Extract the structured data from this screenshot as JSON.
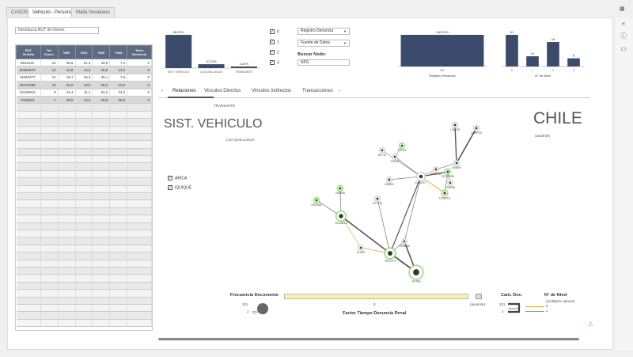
{
  "tabs": [
    {
      "label": "CASOS"
    },
    {
      "label": "Vehiculo - Persona"
    },
    {
      "label": "Malla Societaria"
    }
  ],
  "search": {
    "placeholder": "Introduzca RUT de Interés"
  },
  "table": {
    "headers": [
      "RUT\nSemilla",
      "Tot.\nConex.",
      "%N0",
      "%N1",
      "%N2",
      "%N3",
      "Tiene\nDenuncia"
    ],
    "rows": [
      [
        "9511212",
        "14",
        "28,5",
        "21,4",
        "42,5",
        "7,1",
        "0"
      ],
      [
        "20380470",
        "14",
        "42,5",
        "14,2",
        "28,5",
        "14,2",
        "0"
      ],
      [
        "11932277",
        "12",
        "16,7",
        "16,3",
        "46,1",
        "7,6",
        "0"
      ],
      [
        "25713338",
        "10",
        "40,0",
        "10,0",
        "40,0",
        "10,0",
        "0"
      ],
      [
        "10128912",
        "9",
        "44,4",
        "11,1",
        "22,2",
        "22,2",
        "0"
      ],
      [
        "7035534",
        "7",
        "28,5",
        "14,2",
        "28,5",
        "28,8",
        "0"
      ]
    ]
  },
  "chart_left": {
    "type": "bar",
    "categories": [
      "SIST. VEHICULO",
      "LOA QUILLAGUA",
      "TRANSANTE"
    ],
    "labels": [
      "88,23%",
      "10,23%",
      "4,20%"
    ],
    "values": [
      88.23,
      10.23,
      4.2
    ]
  },
  "levels_filter": [
    {
      "label": "0",
      "checked": true
    },
    {
      "label": "1",
      "checked": true
    },
    {
      "label": "2",
      "checked": true
    },
    {
      "label": "3",
      "checked": true
    }
  ],
  "dropdowns": {
    "registro": "Registro Denuncia",
    "fuente": "Fuente de Datos"
  },
  "buscar": {
    "label": "Buscar Nodo:",
    "value": "NFG"
  },
  "chart_registro": {
    "type": "bar",
    "categories": [
      "NO"
    ],
    "labels": [
      "100,00%"
    ],
    "values": [
      100
    ],
    "xlabel": "Registro Denuncia"
  },
  "chart_nivel": {
    "type": "bar",
    "categories": [
      "0",
      "1",
      "2",
      "3"
    ],
    "values": [
      31,
      10,
      24,
      8
    ],
    "xlabel": "N° de Nivel"
  },
  "view_tabs": {
    "prev": "‹",
    "items": [
      "Relaciones",
      "Vinculos Directos",
      "Vinculos Indirectos",
      "Transacciones"
    ],
    "next": "›"
  },
  "graph": {
    "top_label": "TRANSANTE",
    "title": "SIST. VEHICULO",
    "subtitle": "LOA QUILLAGUA",
    "country": "CHILE",
    "country_sub": "(ausente)",
    "filters": [
      {
        "label": "ARICA",
        "checked": true
      },
      {
        "label": "IQUIQUE",
        "checked": true
      }
    ],
    "node_labels": [
      "L3H8T6",
      "L6WP23",
      "P1F64",
      "B7L10",
      "JDR74",
      "BV8R5",
      "L5H891",
      "11932277",
      "HV8T55",
      "25713338",
      "FX5P82",
      "L3WR13",
      "HG8N5",
      "KDV646",
      "10128912",
      "H77T43",
      "HL5P6",
      "9511212",
      "7035534",
      "HF7B4"
    ]
  },
  "bottom": {
    "freq_title": "Frecuencia Documento",
    "freq_min": "331",
    "freq_max": "2",
    "scale_mid": "0",
    "scale_right": "(ausente)",
    "axis_title": "Factor Tiempo Denuncia Penal",
    "cant_title": "Cant. Doc.",
    "cant_top": "321",
    "cant_bottom": "2",
    "nivel_title": "N° de Nivel",
    "nivel_sub": "(múltiples valores)",
    "nivel_items": [
      "0",
      "1"
    ]
  },
  "colors": {
    "bar": "#3b4b6b",
    "header": "#5d6b80",
    "node_green": "#7ed957",
    "legend_orange": "#f0a030",
    "legend_green": "#66cc33",
    "scale_yellow": "#f7f2b0"
  }
}
